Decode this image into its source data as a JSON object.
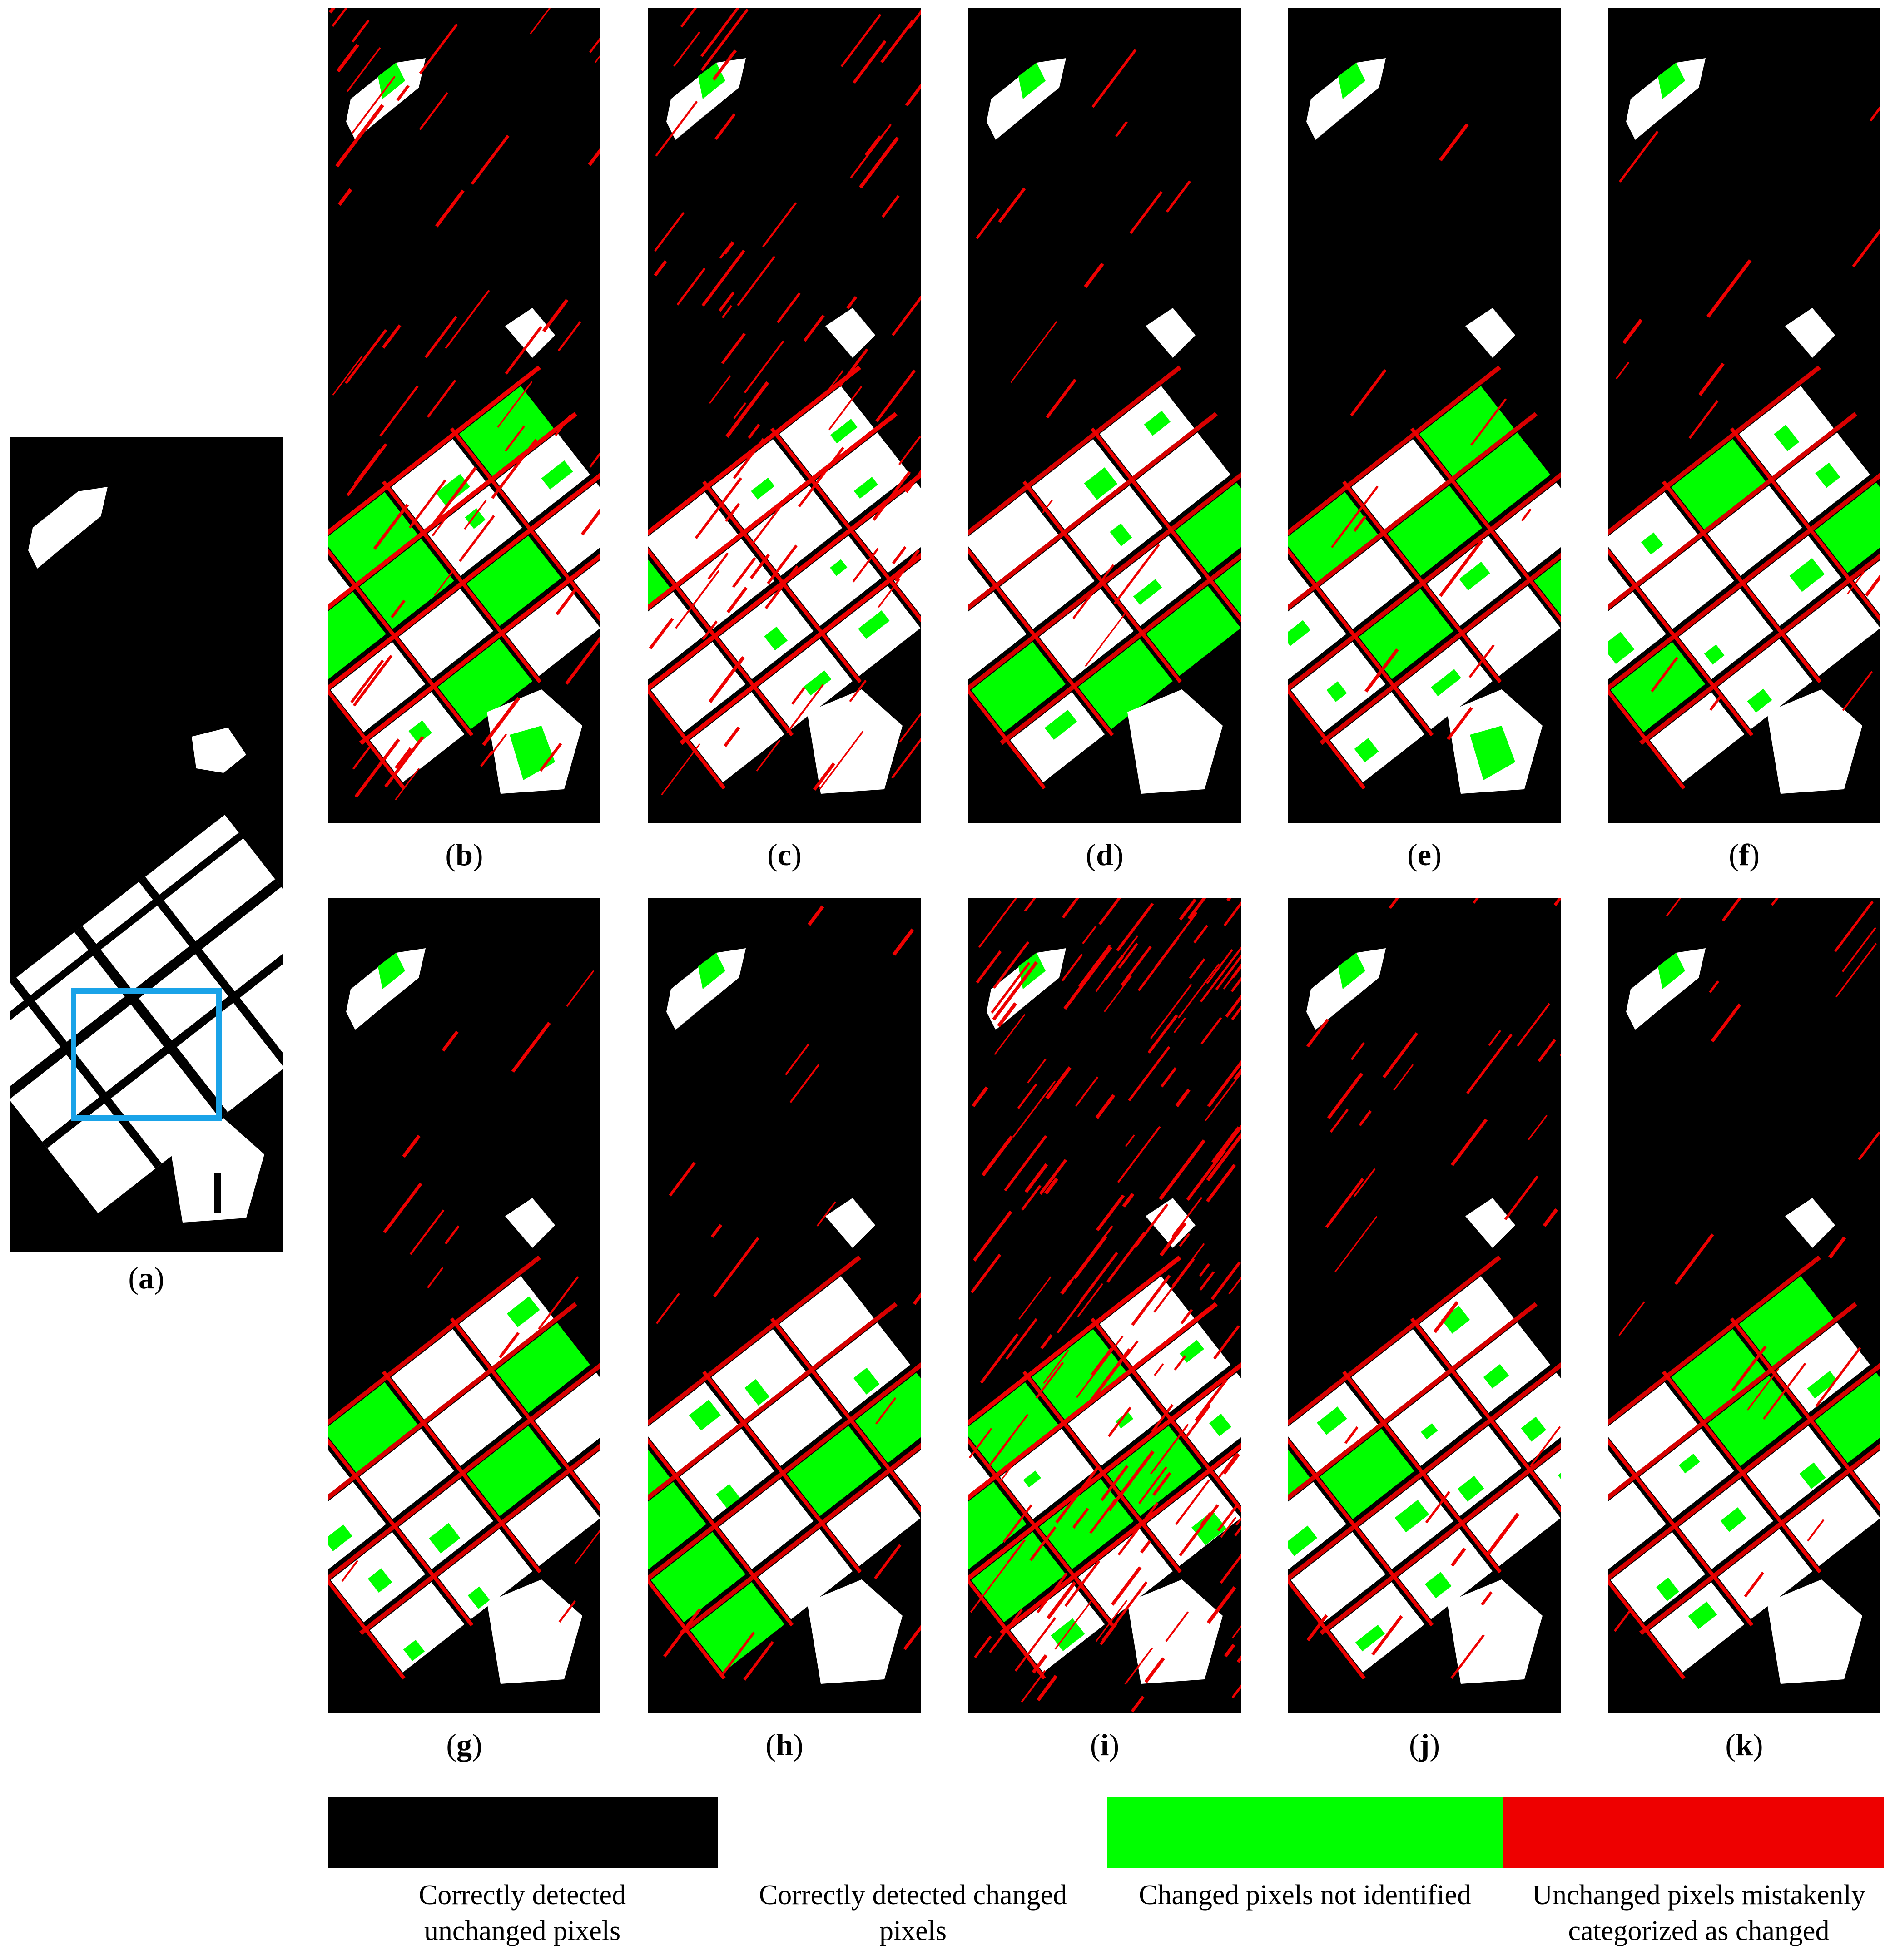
{
  "panels": [
    {
      "id": "a",
      "label": "a"
    },
    {
      "id": "b",
      "label": "b"
    },
    {
      "id": "c",
      "label": "c"
    },
    {
      "id": "d",
      "label": "d"
    },
    {
      "id": "e",
      "label": "e"
    },
    {
      "id": "f",
      "label": "f"
    },
    {
      "id": "g",
      "label": "g"
    },
    {
      "id": "h",
      "label": "h"
    },
    {
      "id": "i",
      "label": "i"
    },
    {
      "id": "j",
      "label": "j"
    },
    {
      "id": "k",
      "label": "k"
    }
  ],
  "legend": [
    {
      "color": "#000000",
      "text": "Correctly detected unchanged pixels"
    },
    {
      "color": "#ffffff",
      "text": "Correctly detected changed pixels"
    },
    {
      "color": "#00ff00",
      "text": "Changed pixels not identified"
    },
    {
      "color": "#ee0000",
      "text": "Unchanged pixels mistakenly categorized as changed"
    }
  ],
  "colors": {
    "unchanged": "#000000",
    "changed": "#ffffff",
    "missed": "#00ff00",
    "false_alarm": "#ee0000",
    "roi_box": "#1aa3e8"
  }
}
